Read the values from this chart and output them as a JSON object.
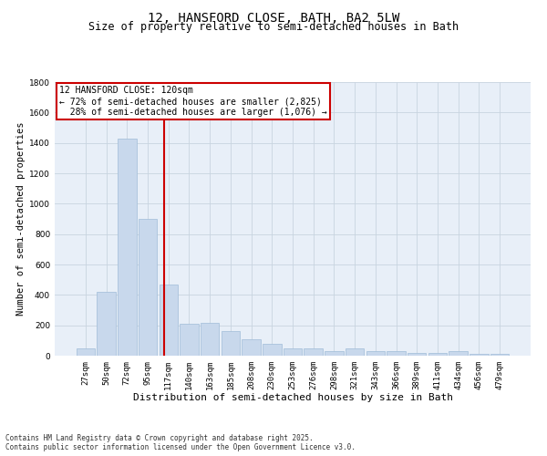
{
  "title": "12, HANSFORD CLOSE, BATH, BA2 5LW",
  "subtitle": "Size of property relative to semi-detached houses in Bath",
  "xlabel": "Distribution of semi-detached houses by size in Bath",
  "ylabel": "Number of semi-detached properties",
  "categories": [
    "27sqm",
    "50sqm",
    "72sqm",
    "95sqm",
    "117sqm",
    "140sqm",
    "163sqm",
    "185sqm",
    "208sqm",
    "230sqm",
    "253sqm",
    "276sqm",
    "298sqm",
    "321sqm",
    "343sqm",
    "366sqm",
    "389sqm",
    "411sqm",
    "434sqm",
    "456sqm",
    "479sqm"
  ],
  "values": [
    50,
    420,
    1430,
    900,
    470,
    210,
    215,
    160,
    110,
    80,
    50,
    50,
    30,
    50,
    30,
    30,
    20,
    20,
    30,
    10,
    10
  ],
  "bar_color": "#c8d8ec",
  "bar_edge_color": "#a0bcd8",
  "grid_color": "#c8d4e0",
  "background_color": "#e8eff8",
  "property_line_color": "#cc0000",
  "property_line_x": 3.78,
  "annotation_line1": "12 HANSFORD CLOSE: 120sqm",
  "annotation_line2": "← 72% of semi-detached houses are smaller (2,825)",
  "annotation_line3": "  28% of semi-detached houses are larger (1,076) →",
  "annotation_box_edgecolor": "#cc0000",
  "ylim_max": 1800,
  "yticks": [
    0,
    200,
    400,
    600,
    800,
    1000,
    1200,
    1400,
    1600,
    1800
  ],
  "footer": "Contains HM Land Registry data © Crown copyright and database right 2025.\nContains public sector information licensed under the Open Government Licence v3.0.",
  "title_fontsize": 10,
  "subtitle_fontsize": 8.5,
  "xlabel_fontsize": 8,
  "ylabel_fontsize": 7.5,
  "tick_fontsize": 6.5,
  "annotation_fontsize": 7,
  "footer_fontsize": 5.5
}
